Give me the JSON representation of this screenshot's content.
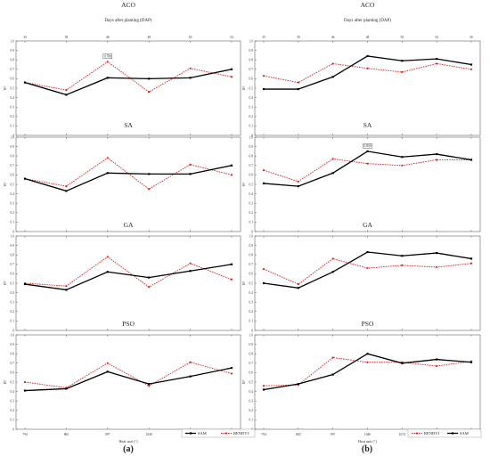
{
  "chart_data": [
    {
      "type": "line",
      "title": "ACO",
      "top_axis_label": "Days after planting (DAP)",
      "top_ticks": [
        "35",
        "39",
        "46",
        "48",
        "50",
        "54"
      ],
      "categories": [
        "794",
        "865",
        "997",
        "1040",
        "1074",
        "1156"
      ],
      "ylabel": "R²",
      "ylim": [
        0,
        1
      ],
      "series": [
        {
          "name": "SAM",
          "values": [
            0.56,
            0.43,
            0.61,
            0.6,
            0.61,
            0.7
          ]
        },
        {
          "name": "RENDVI",
          "values": [
            0.56,
            0.48,
            0.78,
            0.46,
            0.71,
            0.62
          ]
        }
      ],
      "annotation": {
        "text": "0.780",
        "series": "RENDVI",
        "index": 2
      }
    },
    {
      "type": "line",
      "title": "SA",
      "categories": [
        "794",
        "865",
        "997",
        "1040",
        "1074",
        "1156"
      ],
      "ylabel": "R²",
      "ylim": [
        0,
        1
      ],
      "series": [
        {
          "name": "SAM",
          "values": [
            0.56,
            0.43,
            0.62,
            0.61,
            0.61,
            0.7
          ]
        },
        {
          "name": "RENDVI",
          "values": [
            0.56,
            0.48,
            0.78,
            0.45,
            0.71,
            0.6
          ]
        }
      ]
    },
    {
      "type": "line",
      "title": "GA",
      "categories": [
        "794",
        "865",
        "997",
        "1040",
        "1074",
        "1156"
      ],
      "ylabel": "R²",
      "ylim": [
        0,
        1
      ],
      "series": [
        {
          "name": "SAM",
          "values": [
            0.49,
            0.43,
            0.62,
            0.56,
            0.63,
            0.7
          ]
        },
        {
          "name": "RENDVI",
          "values": [
            0.5,
            0.47,
            0.78,
            0.46,
            0.71,
            0.54
          ]
        }
      ]
    },
    {
      "type": "line",
      "title": "PSO",
      "categories": [
        "794",
        "865",
        "997",
        "1040",
        "1074",
        "1156"
      ],
      "xlabel": "Heat unit (°)",
      "ylabel": "R²",
      "ylim": [
        0,
        1
      ],
      "series": [
        {
          "name": "SAM",
          "values": [
            0.41,
            0.43,
            0.61,
            0.48,
            0.56,
            0.65
          ]
        },
        {
          "name": "RENDVI",
          "values": [
            0.5,
            0.44,
            0.7,
            0.46,
            0.71,
            0.59
          ]
        }
      ]
    },
    {
      "type": "line",
      "title": "ACO",
      "top_axis_label": "Days after planting (DAP)",
      "top_ticks": [
        "35",
        "39",
        "46",
        "48",
        "50",
        "54",
        "56"
      ],
      "categories": [
        "794",
        "865",
        "997",
        "1040",
        "1074",
        "1156",
        "1205"
      ],
      "ylabel": "R²",
      "ylim": [
        0,
        1
      ],
      "series": [
        {
          "name": "SAM",
          "values": [
            0.49,
            0.49,
            0.62,
            0.84,
            0.79,
            0.81,
            0.75
          ]
        },
        {
          "name": "RENDVI",
          "values": [
            0.63,
            0.56,
            0.76,
            0.71,
            0.67,
            0.76,
            0.7
          ]
        }
      ]
    },
    {
      "type": "line",
      "title": "SA",
      "categories": [
        "794",
        "865",
        "997",
        "1040",
        "1074",
        "1156",
        "1205"
      ],
      "ylabel": "R²",
      "ylim": [
        0,
        1
      ],
      "series": [
        {
          "name": "SAM",
          "values": [
            0.51,
            0.48,
            0.62,
            0.85,
            0.79,
            0.82,
            0.76
          ]
        },
        {
          "name": "RENDVI",
          "values": [
            0.65,
            0.53,
            0.77,
            0.72,
            0.7,
            0.76,
            0.76
          ]
        }
      ],
      "annotation": {
        "text": "0.850",
        "series": "SAM",
        "index": 3
      }
    },
    {
      "type": "line",
      "title": "GA",
      "categories": [
        "794",
        "865",
        "997",
        "1040",
        "1074",
        "1156",
        "1205"
      ],
      "ylabel": "R²",
      "ylim": [
        0,
        1
      ],
      "series": [
        {
          "name": "SAM",
          "values": [
            0.5,
            0.45,
            0.62,
            0.83,
            0.79,
            0.82,
            0.76
          ]
        },
        {
          "name": "RENDVI",
          "values": [
            0.65,
            0.49,
            0.76,
            0.66,
            0.69,
            0.67,
            0.71
          ]
        }
      ]
    },
    {
      "type": "line",
      "title": "PSO",
      "categories": [
        "794",
        "865",
        "997",
        "1040",
        "1074",
        "1156",
        "1205"
      ],
      "xlabel": "Heat unit (°)",
      "ylabel": "R²",
      "ylim": [
        0,
        1
      ],
      "series": [
        {
          "name": "SAM",
          "values": [
            0.42,
            0.48,
            0.58,
            0.8,
            0.7,
            0.74,
            0.71
          ]
        },
        {
          "name": "RENDVI",
          "values": [
            0.46,
            0.47,
            0.76,
            0.71,
            0.71,
            0.67,
            0.72
          ]
        }
      ]
    }
  ],
  "y_ticks": [
    "0",
    "0.1",
    "0.2",
    "0.3",
    "0.4",
    "0.5",
    "0.6",
    "0.7",
    "0.8",
    "0.9",
    "1.0"
  ],
  "legends": {
    "a": [
      {
        "name": "SAM",
        "style": "SAM"
      },
      {
        "name": "RENDVI",
        "style": "RENDVI"
      }
    ],
    "b": [
      {
        "name": "RENDVI",
        "style": "RENDVI"
      },
      {
        "name": "SAM",
        "style": "SAM"
      }
    ]
  },
  "panel_labels": {
    "a": "(a)",
    "b": "(b)"
  },
  "colors": {
    "SAM": "#000000",
    "RENDVI": "#e0201b",
    "axis": "#444444"
  }
}
